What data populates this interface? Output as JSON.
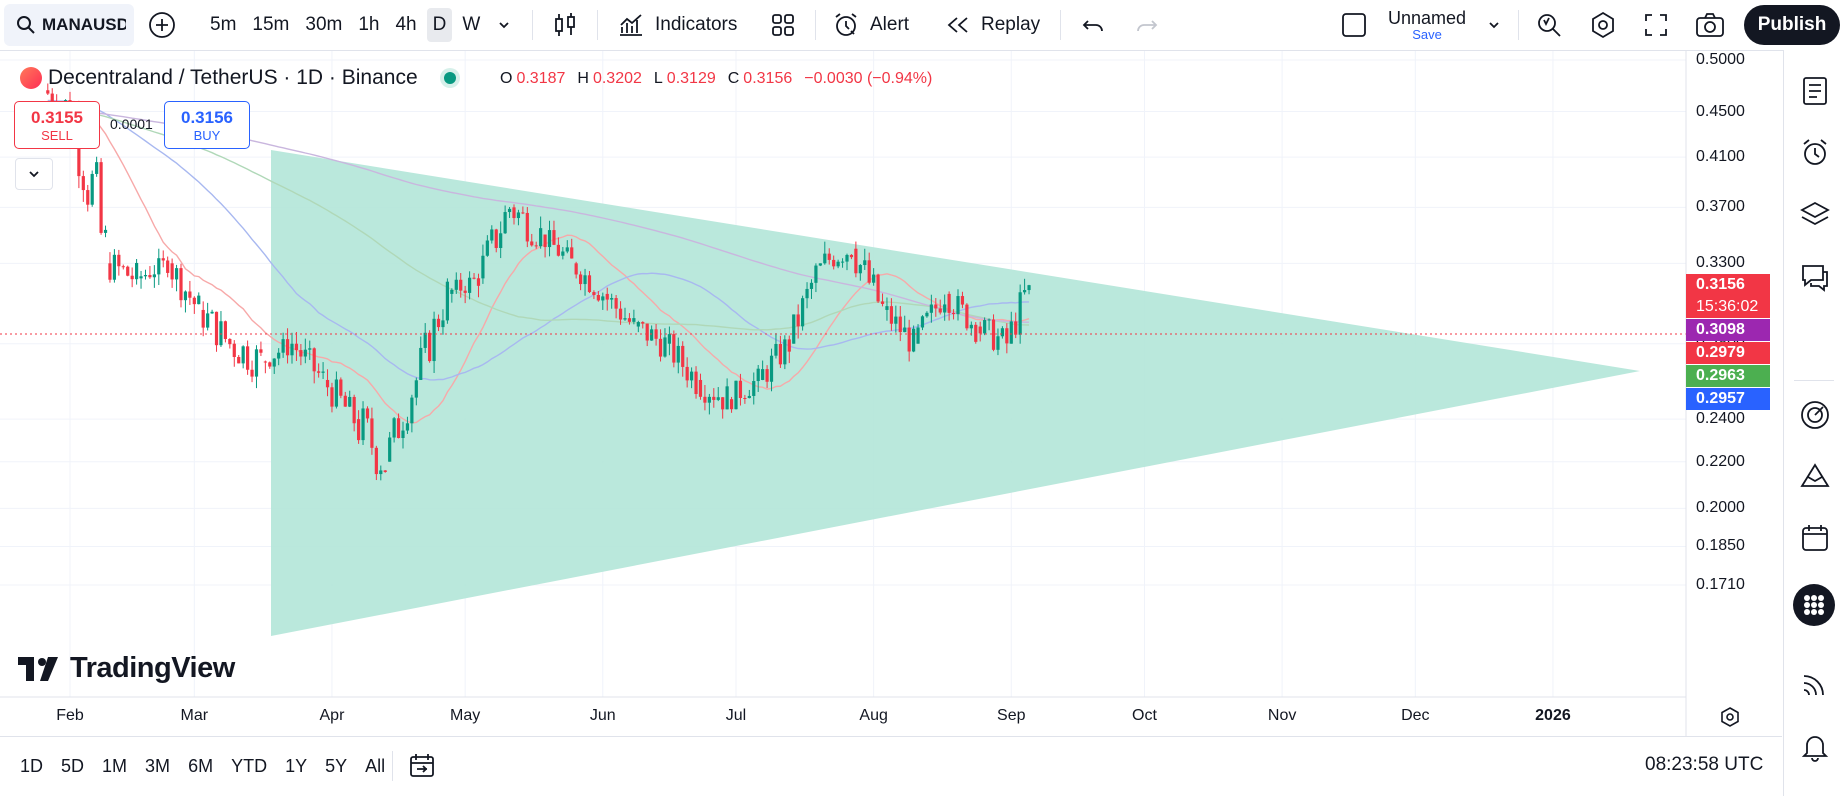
{
  "toolbar": {
    "symbol": "MANAUSD",
    "intervals": [
      "5m",
      "15m",
      "30m",
      "1h",
      "4h",
      "D",
      "W"
    ],
    "active_interval": "D",
    "indicators_label": "Indicators",
    "alert_label": "Alert",
    "replay_label": "Replay",
    "layout_name": "Unnamed",
    "layout_save": "Save",
    "publish_label": "Publish"
  },
  "legend": {
    "title": "Decentraland / TetherUS · 1D · Binance",
    "o_label": "O",
    "o": "0.3187",
    "h_label": "H",
    "h": "0.3202",
    "l_label": "L",
    "l": "0.3129",
    "c_label": "C",
    "c": "0.3156",
    "change": "−0.0030 (−0.94%)"
  },
  "trade": {
    "sell_price": "0.3155",
    "sell_label": "SELL",
    "spread": "0.0001",
    "buy_price": "0.3156",
    "buy_label": "BUY"
  },
  "price_axis": {
    "ticks": [
      "0.5000",
      "0.4500",
      "0.4100",
      "0.3700",
      "0.3300",
      "0.2800",
      "0.2400",
      "0.2200",
      "0.2000",
      "0.1850",
      "0.1710"
    ],
    "badges": [
      {
        "value": "0.3156",
        "color": "#f23645"
      },
      {
        "value": "15:36:02",
        "color": "#f23645"
      },
      {
        "value": "0.3098",
        "color": "#9c27b0"
      },
      {
        "value": "0.2979",
        "color": "#f23645"
      },
      {
        "value": "0.2963",
        "color": "#4caf50"
      },
      {
        "value": "0.2957",
        "color": "#2962ff"
      }
    ]
  },
  "time_axis": {
    "labels": [
      "Feb",
      "Mar",
      "Apr",
      "May",
      "Jun",
      "Jul",
      "Aug",
      "Sep",
      "Oct",
      "Nov",
      "Dec",
      "2026"
    ]
  },
  "watermark": "TradingView",
  "ranges": [
    "1D",
    "5D",
    "1M",
    "3M",
    "6M",
    "YTD",
    "1Y",
    "5Y",
    "All"
  ],
  "clock": "08:23:58 UTC",
  "colors": {
    "up": "#089981",
    "down": "#f23645",
    "triangle_fill": "#b2e5d8",
    "accent": "#2962ff"
  },
  "chart_data": {
    "type": "candlestick",
    "symbol": "Decentraland / TetherUS",
    "timeframe": "1D",
    "exchange": "Binance",
    "ylim": [
      0.171,
      0.5
    ],
    "y_scale": "log",
    "last_price": 0.3156,
    "candles_weekly_approx": [
      {
        "t": "2025-01-27",
        "o": 0.47,
        "h": 0.5,
        "l": 0.43,
        "c": 0.45
      },
      {
        "t": "2025-02-03",
        "o": 0.45,
        "h": 0.46,
        "l": 0.27,
        "c": 0.33
      },
      {
        "t": "2025-02-10",
        "o": 0.33,
        "h": 0.35,
        "l": 0.3,
        "c": 0.32
      },
      {
        "t": "2025-02-17",
        "o": 0.32,
        "h": 0.34,
        "l": 0.31,
        "c": 0.33
      },
      {
        "t": "2025-02-24",
        "o": 0.33,
        "h": 0.34,
        "l": 0.29,
        "c": 0.3
      },
      {
        "t": "2025-03-03",
        "o": 0.3,
        "h": 0.32,
        "l": 0.27,
        "c": 0.28
      },
      {
        "t": "2025-03-10",
        "o": 0.28,
        "h": 0.29,
        "l": 0.24,
        "c": 0.27
      },
      {
        "t": "2025-03-17",
        "o": 0.27,
        "h": 0.29,
        "l": 0.26,
        "c": 0.28
      },
      {
        "t": "2025-03-24",
        "o": 0.28,
        "h": 0.29,
        "l": 0.25,
        "c": 0.26
      },
      {
        "t": "2025-03-31",
        "o": 0.26,
        "h": 0.27,
        "l": 0.23,
        "c": 0.24
      },
      {
        "t": "2025-04-07",
        "o": 0.24,
        "h": 0.25,
        "l": 0.19,
        "c": 0.22
      },
      {
        "t": "2025-04-14",
        "o": 0.22,
        "h": 0.27,
        "l": 0.22,
        "c": 0.26
      },
      {
        "t": "2025-04-21",
        "o": 0.26,
        "h": 0.32,
        "l": 0.26,
        "c": 0.31
      },
      {
        "t": "2025-04-28",
        "o": 0.31,
        "h": 0.33,
        "l": 0.3,
        "c": 0.32
      },
      {
        "t": "2025-05-05",
        "o": 0.32,
        "h": 0.38,
        "l": 0.31,
        "c": 0.37
      },
      {
        "t": "2025-05-12",
        "o": 0.37,
        "h": 0.4,
        "l": 0.34,
        "c": 0.35
      },
      {
        "t": "2025-05-19",
        "o": 0.35,
        "h": 0.36,
        "l": 0.32,
        "c": 0.33
      },
      {
        "t": "2025-05-26",
        "o": 0.33,
        "h": 0.34,
        "l": 0.3,
        "c": 0.31
      },
      {
        "t": "2025-06-02",
        "o": 0.31,
        "h": 0.32,
        "l": 0.28,
        "c": 0.29
      },
      {
        "t": "2025-06-09",
        "o": 0.29,
        "h": 0.31,
        "l": 0.27,
        "c": 0.28
      },
      {
        "t": "2025-06-16",
        "o": 0.28,
        "h": 0.29,
        "l": 0.25,
        "c": 0.26
      },
      {
        "t": "2025-06-23",
        "o": 0.26,
        "h": 0.27,
        "l": 0.23,
        "c": 0.25
      },
      {
        "t": "2025-06-30",
        "o": 0.25,
        "h": 0.27,
        "l": 0.24,
        "c": 0.26
      },
      {
        "t": "2025-07-07",
        "o": 0.26,
        "h": 0.29,
        "l": 0.25,
        "c": 0.28
      },
      {
        "t": "2025-07-14",
        "o": 0.28,
        "h": 0.33,
        "l": 0.28,
        "c": 0.33
      },
      {
        "t": "2025-07-21",
        "o": 0.33,
        "h": 0.36,
        "l": 0.32,
        "c": 0.34
      },
      {
        "t": "2025-07-28",
        "o": 0.34,
        "h": 0.35,
        "l": 0.29,
        "c": 0.3
      },
      {
        "t": "2025-08-04",
        "o": 0.3,
        "h": 0.31,
        "l": 0.27,
        "c": 0.28
      },
      {
        "t": "2025-08-11",
        "o": 0.28,
        "h": 0.32,
        "l": 0.28,
        "c": 0.31
      },
      {
        "t": "2025-08-18",
        "o": 0.31,
        "h": 0.32,
        "l": 0.28,
        "c": 0.29
      },
      {
        "t": "2025-08-25",
        "o": 0.29,
        "h": 0.31,
        "l": 0.27,
        "c": 0.28
      },
      {
        "t": "2025-09-01",
        "o": 0.28,
        "h": 0.33,
        "l": 0.28,
        "c": 0.3156
      }
    ],
    "overlays": {
      "triangle": {
        "type": "symmetrical_triangle",
        "points": [
          {
            "t": "2025-03-19",
            "price": 0.445
          },
          {
            "t": "2025-03-19",
            "price": 0.186
          },
          {
            "t": "2025-12-16",
            "price": 0.297
          }
        ]
      },
      "moving_averages": 4
    }
  }
}
